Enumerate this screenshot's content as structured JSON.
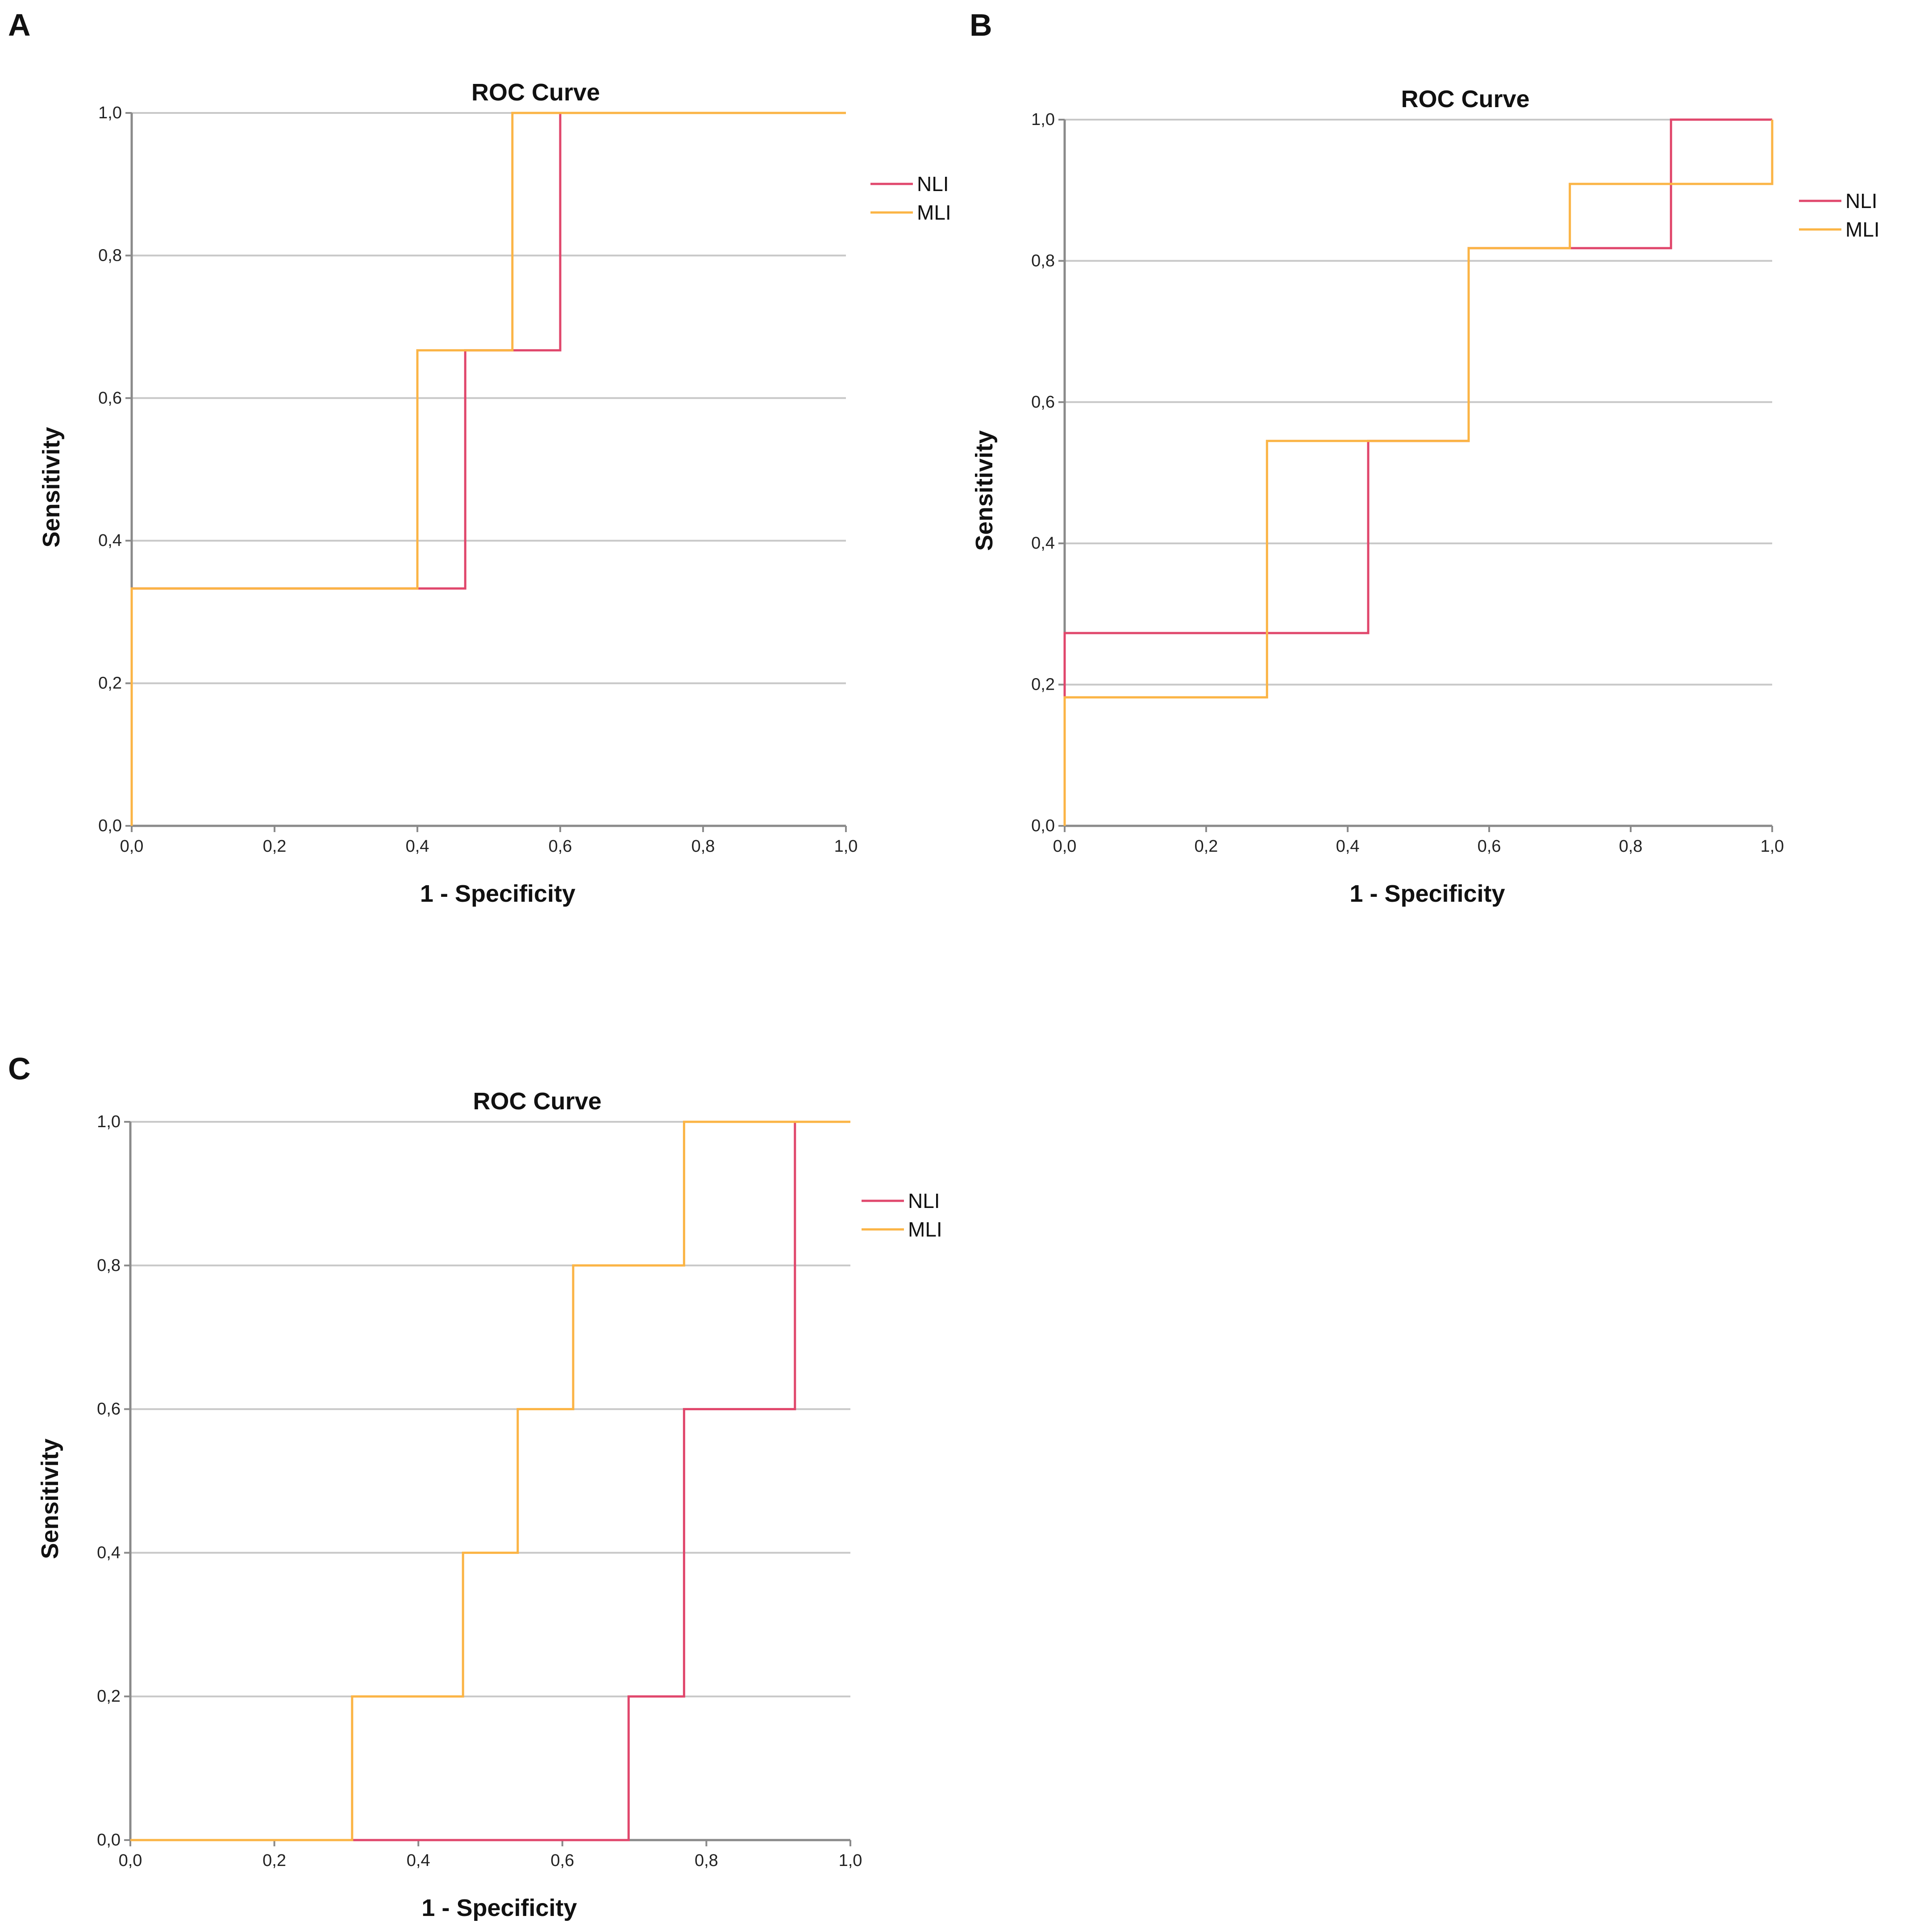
{
  "figure": {
    "panels": [
      "A",
      "B",
      "C"
    ]
  },
  "colors": {
    "NLI": "#e0476c",
    "MLI": "#fbb445"
  },
  "chart_data": [
    {
      "panel": "A",
      "type": "line",
      "step": true,
      "title": "ROC Curve",
      "xlabel": "1 - Specificity",
      "ylabel": "Sensitivity",
      "xlim": [
        0,
        1
      ],
      "ylim": [
        0,
        1
      ],
      "xticks": [
        "0,0",
        "0,2",
        "0,4",
        "0,6",
        "0,8",
        "1,0"
      ],
      "yticks": [
        "0,0",
        "0,2",
        "0,4",
        "0,6",
        "0,8",
        "1,0"
      ],
      "grid": "horizontal",
      "legend": [
        "NLI",
        "MLI"
      ],
      "legend_position": "right-top",
      "series": [
        {
          "name": "NLI",
          "x": [
            0,
            0,
            0.467,
            0.467,
            0.6,
            0.6,
            1
          ],
          "y": [
            0,
            0.333,
            0.333,
            0.667,
            0.667,
            1,
            1
          ]
        },
        {
          "name": "MLI",
          "x": [
            0,
            0,
            0.4,
            0.4,
            0.533,
            0.533,
            1
          ],
          "y": [
            0,
            0.333,
            0.333,
            0.667,
            0.667,
            1,
            1
          ]
        }
      ]
    },
    {
      "panel": "B",
      "type": "line",
      "step": true,
      "title": "ROC Curve",
      "xlabel": "1 - Specificity",
      "ylabel": "Sensitivity",
      "xlim": [
        0,
        1
      ],
      "ylim": [
        0,
        1
      ],
      "xticks": [
        "0,0",
        "0,2",
        "0,4",
        "0,6",
        "0,8",
        "1,0"
      ],
      "yticks": [
        "0,0",
        "0,2",
        "0,4",
        "0,6",
        "0,8",
        "1,0"
      ],
      "grid": "horizontal",
      "legend": [
        "NLI",
        "MLI"
      ],
      "legend_position": "right-top",
      "series": [
        {
          "name": "NLI",
          "x": [
            0,
            0,
            0.429,
            0.429,
            0.571,
            0.571,
            0.857,
            0.857,
            1
          ],
          "y": [
            0,
            0.273,
            0.273,
            0.545,
            0.545,
            0.818,
            0.818,
            1,
            1
          ]
        },
        {
          "name": "MLI",
          "x": [
            0,
            0,
            0.286,
            0.286,
            0.571,
            0.571,
            0.714,
            0.714,
            1,
            1
          ],
          "y": [
            0,
            0.182,
            0.182,
            0.545,
            0.545,
            0.818,
            0.818,
            0.909,
            0.909,
            1
          ]
        }
      ]
    },
    {
      "panel": "C",
      "type": "line",
      "step": true,
      "title": "ROC Curve",
      "xlabel": "1 - Specificity",
      "ylabel": "Sensitivity",
      "xlim": [
        0,
        1
      ],
      "ylim": [
        0,
        1
      ],
      "xticks": [
        "0,0",
        "0,2",
        "0,4",
        "0,6",
        "0,8",
        "1,0"
      ],
      "yticks": [
        "0,0",
        "0,2",
        "0,4",
        "0,6",
        "0,8",
        "1,0"
      ],
      "grid": "horizontal",
      "legend": [
        "NLI",
        "MLI"
      ],
      "legend_position": "right-top",
      "series": [
        {
          "name": "NLI",
          "x": [
            0,
            0.692,
            0.692,
            0.769,
            0.769,
            0.923,
            0.923,
            1
          ],
          "y": [
            0,
            0,
            0.2,
            0.2,
            0.6,
            0.6,
            1,
            1
          ]
        },
        {
          "name": "MLI",
          "x": [
            0,
            0.308,
            0.308,
            0.462,
            0.462,
            0.538,
            0.538,
            0.615,
            0.615,
            0.769,
            0.769,
            1
          ],
          "y": [
            0,
            0,
            0.2,
            0.2,
            0.4,
            0.4,
            0.6,
            0.6,
            0.8,
            0.8,
            1,
            1
          ]
        }
      ]
    }
  ]
}
